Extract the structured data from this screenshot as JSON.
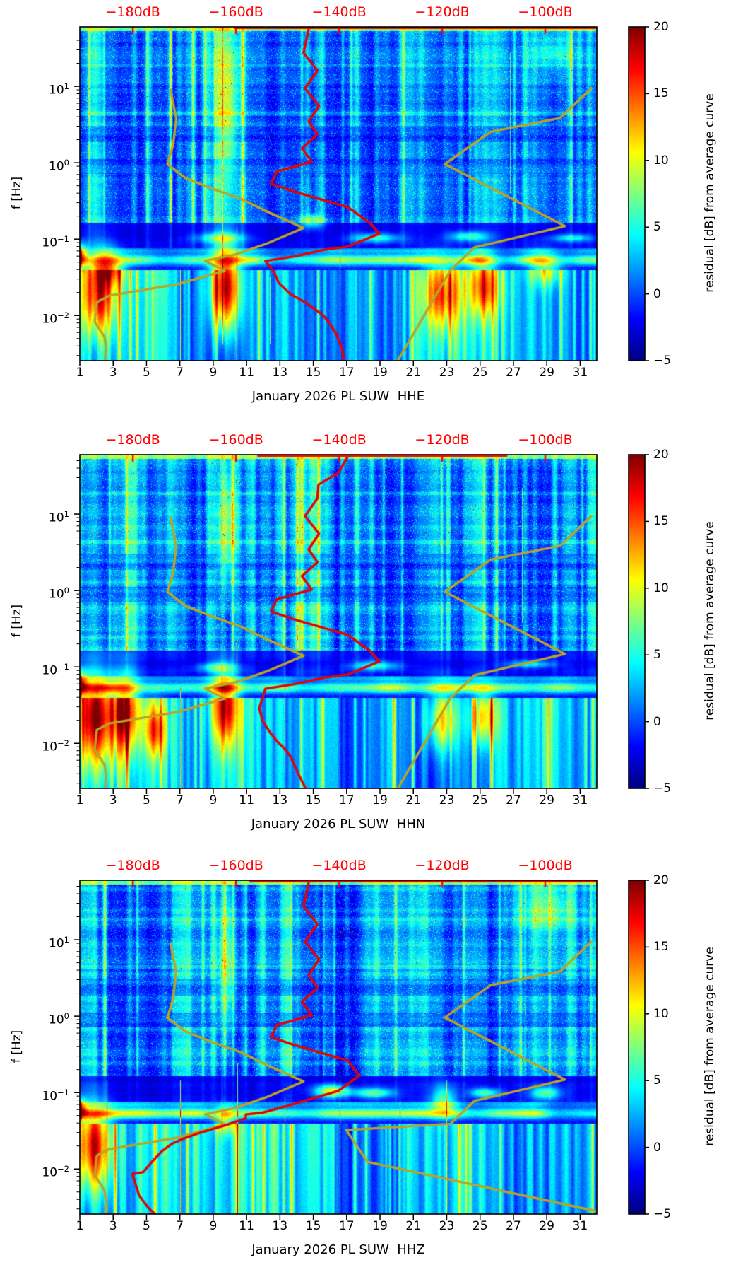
{
  "chart_data": {
    "type": "heatmap",
    "description_visible": "Three stacked day-frequency residual spectrograms with overlaid PSD curve (red) and noise-model curves (olive), each with a jet colorbar",
    "figures": [
      {
        "component": "HHE",
        "title": "January 2026 PL SUW  HHE",
        "seed": 20260101,
        "red_top_clip": [
          0.3,
          1.0
        ],
        "red_psd_dB_Hz": [
          [
            -145.8,
            60
          ],
          [
            -146.9,
            27.4
          ],
          [
            -144.2,
            16.1
          ],
          [
            -146.6,
            9.45
          ],
          [
            -143.9,
            5.55
          ],
          [
            -145.9,
            3.45
          ],
          [
            -144.2,
            2.35
          ],
          [
            -147.2,
            1.54
          ],
          [
            -145.3,
            1.03
          ],
          [
            -152.1,
            0.765
          ],
          [
            -153.2,
            0.531
          ],
          [
            -148.3,
            0.41
          ],
          [
            -138.3,
            0.263
          ],
          [
            -133.9,
            0.16
          ],
          [
            -132.2,
            0.118
          ],
          [
            -138.2,
            0.08
          ],
          [
            -142.8,
            0.0727
          ],
          [
            -148.3,
            0.06
          ],
          [
            -154.3,
            0.0518
          ],
          [
            -152.6,
            0.0369
          ],
          [
            -151.7,
            0.0266
          ],
          [
            -149.4,
            0.019
          ],
          [
            -146.5,
            0.0148
          ],
          [
            -143.1,
            0.0101
          ],
          [
            -141.8,
            0.0078
          ],
          [
            -140.7,
            0.006
          ],
          [
            -139.7,
            0.0042
          ],
          [
            -139.0,
            0.00257
          ]
        ],
        "hotspots": [
          {
            "d": 2.1,
            "f": 0.019,
            "rx": 0.035,
            "ry": 0.12,
            "a": 14
          },
          {
            "d": 2.7,
            "f": 0.043,
            "rx": 0.03,
            "ry": 0.05,
            "a": 10
          },
          {
            "d": 9.7,
            "f": 0.0235,
            "rx": 0.028,
            "ry": 0.13,
            "a": 19
          },
          {
            "d": 22.7,
            "f": 0.019,
            "rx": 0.035,
            "ry": 0.1,
            "a": 11
          },
          {
            "d": 25.2,
            "f": 0.0235,
            "rx": 0.028,
            "ry": 0.09,
            "a": 11
          },
          {
            "d": 28.9,
            "f": 0.042,
            "rx": 0.03,
            "ry": 0.05,
            "a": 8
          },
          {
            "d": 9.8,
            "f": 6,
            "rx": 0.02,
            "ry": 0.26,
            "a": 8
          },
          {
            "d": 1.05,
            "f": 0.06,
            "rx": 0.012,
            "ry": 0.035,
            "a": 12
          },
          {
            "d": 14.9,
            "f": 0.172,
            "rx": 0.025,
            "ry": 0.022,
            "a": 7
          },
          {
            "d": 18.7,
            "f": 0.105,
            "rx": 0.05,
            "ry": 0.015,
            "a": 8
          },
          {
            "d": 24.3,
            "f": 0.11,
            "rx": 0.04,
            "ry": 0.015,
            "a": 8
          },
          {
            "d": 9.4,
            "f": 0.105,
            "rx": 0.05,
            "ry": 0.015,
            "a": 7
          },
          {
            "d": 30.5,
            "f": 0.105,
            "rx": 0.04,
            "ry": 0.012,
            "a": 7
          },
          {
            "d": 29.5,
            "f": 30,
            "rx": 0.04,
            "ry": 0.06,
            "a": 4
          }
        ],
        "lines": [
          [
            7.0,
            0.73,
            1,
            9
          ],
          [
            10.4,
            0.6,
            1,
            10
          ],
          [
            16.6,
            0.66,
            1,
            8
          ],
          [
            20.2,
            0.73,
            0.95,
            8
          ],
          [
            12.4,
            0.75,
            0.95,
            7
          ],
          [
            4.9,
            0.1,
            0.55,
            6
          ],
          [
            26.8,
            0.08,
            0.5,
            6
          ],
          [
            9.55,
            0.0,
            0.95,
            6
          ]
        ],
        "low_boost": [
          {
            "x0": 0,
            "x1": 0.06,
            "a": 1.5
          }
        ]
      },
      {
        "component": "HHN",
        "title": "January 2026 PL SUW  HHN",
        "seed": 20260247,
        "red_top_clip": [
          0.345,
          0.825
        ],
        "red_psd_dB_Hz": [
          [
            -138.1,
            60
          ],
          [
            -140.2,
            34.4
          ],
          [
            -144.0,
            24.3
          ],
          [
            -144.2,
            16.1
          ],
          [
            -146.6,
            9.45
          ],
          [
            -143.9,
            5.55
          ],
          [
            -145.9,
            3.45
          ],
          [
            -144.2,
            2.35
          ],
          [
            -147.2,
            1.54
          ],
          [
            -145.3,
            1.03
          ],
          [
            -152.1,
            0.765
          ],
          [
            -153.2,
            0.531
          ],
          [
            -148.3,
            0.41
          ],
          [
            -138.3,
            0.263
          ],
          [
            -133.9,
            0.16
          ],
          [
            -132.2,
            0.118
          ],
          [
            -138.2,
            0.08
          ],
          [
            -142.8,
            0.0727
          ],
          [
            -148.3,
            0.06
          ],
          [
            -154.3,
            0.0518
          ],
          [
            -155.5,
            0.0287
          ],
          [
            -154.8,
            0.0194
          ],
          [
            -153.3,
            0.0136
          ],
          [
            -151.9,
            0.0104
          ],
          [
            -150.7,
            0.0087
          ],
          [
            -149.4,
            0.0067
          ],
          [
            -148.0,
            0.0041
          ],
          [
            -146.5,
            0.00257
          ]
        ],
        "hotspots": [
          {
            "d": 1.9,
            "f": 0.022,
            "rx": 0.04,
            "ry": 0.14,
            "a": 16
          },
          {
            "d": 3.8,
            "f": 0.025,
            "rx": 0.025,
            "ry": 0.12,
            "a": 13
          },
          {
            "d": 5.5,
            "f": 0.015,
            "rx": 0.02,
            "ry": 0.08,
            "a": 11
          },
          {
            "d": 9.7,
            "f": 0.03,
            "rx": 0.025,
            "ry": 0.12,
            "a": 14
          },
          {
            "d": 22.7,
            "f": 0.02,
            "rx": 0.03,
            "ry": 0.09,
            "a": 10
          },
          {
            "d": 25.2,
            "f": 0.022,
            "rx": 0.025,
            "ry": 0.08,
            "a": 10
          },
          {
            "d": 9.8,
            "f": 8,
            "rx": 0.02,
            "ry": 0.22,
            "a": 9
          },
          {
            "d": 1.05,
            "f": 0.06,
            "rx": 0.012,
            "ry": 0.035,
            "a": 10
          },
          {
            "d": 18.7,
            "f": 0.105,
            "rx": 0.05,
            "ry": 0.015,
            "a": 8
          },
          {
            "d": 28.0,
            "f": 0.11,
            "rx": 0.05,
            "ry": 0.012,
            "a": 7
          },
          {
            "d": 9.2,
            "f": 0.1,
            "rx": 0.04,
            "ry": 0.015,
            "a": 7
          }
        ],
        "lines": [
          [
            7.0,
            0.7,
            1,
            9
          ],
          [
            10.4,
            0.55,
            1,
            9
          ],
          [
            13.3,
            0.6,
            0.95,
            8
          ],
          [
            16.6,
            0.7,
            1,
            8
          ],
          [
            20.2,
            0.7,
            1,
            8
          ],
          [
            9.5,
            0,
            0.9,
            6
          ],
          [
            27.5,
            0.1,
            0.5,
            6
          ]
        ],
        "low_boost": [
          {
            "x0": 0,
            "x1": 0.35,
            "a": 2.2
          }
        ]
      },
      {
        "component": "HHZ",
        "title": "January 2026 PL SUW  HHZ",
        "seed": 20260383,
        "nhnm_variant": true,
        "red_top_clip": [
          0.33,
          1.0
        ],
        "red_psd_dB_Hz": [
          [
            -145.8,
            60
          ],
          [
            -146.9,
            27.4
          ],
          [
            -144.2,
            16.1
          ],
          [
            -146.6,
            9.45
          ],
          [
            -143.9,
            5.55
          ],
          [
            -145.9,
            3.45
          ],
          [
            -144.2,
            2.35
          ],
          [
            -147.2,
            1.54
          ],
          [
            -145.3,
            1.03
          ],
          [
            -152.1,
            0.765
          ],
          [
            -153.2,
            0.531
          ],
          [
            -148.3,
            0.41
          ],
          [
            -138.3,
            0.263
          ],
          [
            -136.1,
            0.166
          ],
          [
            -140.2,
            0.105
          ],
          [
            -150.0,
            0.067
          ],
          [
            -154.7,
            0.055
          ],
          [
            -158.1,
            0.0517
          ],
          [
            -158.1,
            0.046
          ],
          [
            -162.3,
            0.0369
          ],
          [
            -167.0,
            0.0298
          ],
          [
            -170.1,
            0.0251
          ],
          [
            -172.4,
            0.0215
          ],
          [
            -174.3,
            0.0173
          ],
          [
            -176.0,
            0.0131
          ],
          [
            -178.0,
            0.0091
          ],
          [
            -180.1,
            0.0086
          ],
          [
            -178.8,
            0.0045
          ],
          [
            -177.0,
            0.0031
          ],
          [
            -175.7,
            0.00257
          ]
        ],
        "hotspots": [
          {
            "d": 1.8,
            "f": 0.02,
            "rx": 0.035,
            "ry": 0.13,
            "a": 15
          },
          {
            "d": 9.7,
            "f": 0.045,
            "rx": 0.02,
            "ry": 0.04,
            "a": 9
          },
          {
            "d": 16.1,
            "f": 0.105,
            "rx": 0.035,
            "ry": 0.02,
            "a": 13
          },
          {
            "d": 18.6,
            "f": 0.1,
            "rx": 0.04,
            "ry": 0.015,
            "a": 9
          },
          {
            "d": 22.8,
            "f": 0.08,
            "rx": 0.025,
            "ry": 0.05,
            "a": 9
          },
          {
            "d": 25.3,
            "f": 0.1,
            "rx": 0.03,
            "ry": 0.015,
            "a": 9
          },
          {
            "d": 28.9,
            "f": 0.1,
            "rx": 0.03,
            "ry": 0.02,
            "a": 9
          },
          {
            "d": 9.8,
            "f": 6,
            "rx": 0.02,
            "ry": 0.26,
            "a": 8
          },
          {
            "d": 1.05,
            "f": 0.06,
            "rx": 0.012,
            "ry": 0.03,
            "a": 10
          },
          {
            "d": 29.0,
            "f": 25,
            "rx": 0.05,
            "ry": 0.08,
            "a": 5
          }
        ],
        "lines": [
          [
            7.0,
            0.6,
            1,
            10
          ],
          [
            10.45,
            0.55,
            1,
            9
          ],
          [
            2.6,
            0.6,
            1,
            8
          ],
          [
            13.3,
            0.65,
            1,
            8
          ],
          [
            16.6,
            0.6,
            1,
            8
          ],
          [
            20.2,
            0.65,
            1,
            8
          ],
          [
            23.0,
            0.6,
            1,
            7
          ],
          [
            9.5,
            0,
            0.9,
            6
          ]
        ],
        "low_boost": [
          {
            "x0": 0,
            "x1": 0.12,
            "a": 1.8
          }
        ]
      }
    ],
    "axes": {
      "x": {
        "tick_labels": [
          "1",
          "3",
          "5",
          "7",
          "9",
          "11",
          "13",
          "15",
          "17",
          "19",
          "21",
          "23",
          "25",
          "27",
          "29",
          "31"
        ],
        "tick_days": [
          1,
          3,
          5,
          7,
          9,
          11,
          13,
          15,
          17,
          19,
          21,
          23,
          25,
          27,
          29,
          31
        ],
        "day_range": [
          1,
          32
        ]
      },
      "y": {
        "label": "f [Hz]",
        "major_tick_exponents": [
          1,
          0,
          -1,
          -2
        ],
        "freq_range_hz": [
          0.00257,
          60
        ],
        "scale": "log"
      },
      "top": {
        "labels": [
          "−180dB",
          "−160dB",
          "−140dB",
          "−120dB",
          "−100dB"
        ],
        "values_dB": [
          -180,
          -160,
          -140,
          -120,
          -100
        ],
        "axis_range_dB": [
          -190.3,
          -90.0
        ],
        "color": "#ff0000"
      }
    },
    "colorbar": {
      "label": "residual [dB] from average curve",
      "tick_labels": [
        "20",
        "15",
        "10",
        "5",
        "0",
        "−5"
      ],
      "tick_values": [
        20,
        15,
        10,
        5,
        0,
        -5
      ],
      "value_range": [
        -5,
        20
      ],
      "colormap": "jet"
    },
    "noise_models": {
      "color": "#b9a426",
      "nlnm_dB_Hz": [
        [
          -172.7,
          9.0
        ],
        [
          -171.6,
          3.8
        ],
        [
          -172.2,
          1.7
        ],
        [
          -173.3,
          0.96
        ],
        [
          -169.8,
          0.63
        ],
        [
          -164.7,
          0.46
        ],
        [
          -159.2,
          0.34
        ],
        [
          -153.7,
          0.225
        ],
        [
          -146.9,
          0.14
        ],
        [
          -154.1,
          0.087
        ],
        [
          -160.1,
          0.063
        ],
        [
          -166.0,
          0.052
        ],
        [
          -162.2,
          0.0384
        ],
        [
          -171.5,
          0.0256
        ],
        [
          -184.6,
          0.0182
        ],
        [
          -187.0,
          0.015
        ],
        [
          -187.4,
          0.0083
        ],
        [
          -185.5,
          0.0052
        ],
        [
          -185.2,
          0.0037
        ],
        [
          -185.4,
          0.00257
        ]
      ],
      "nhnm_dB_Hz": [
        [
          -91.1,
          9.4
        ],
        [
          -97.1,
          3.85
        ],
        [
          -110.6,
          2.54
        ],
        [
          -119.5,
          0.96
        ],
        [
          -96.2,
          0.148
        ],
        [
          -113.7,
          0.078
        ],
        [
          -118.4,
          0.039
        ],
        [
          -128.6,
          0.00257
        ]
      ],
      "nhnm_hhz_tail_dB_Hz": [
        [
          -138.6,
          0.0324
        ],
        [
          -134.5,
          0.0124
        ],
        [
          -90.0,
          0.0028
        ]
      ]
    },
    "psd_curve_color": "#e80000",
    "grid": false,
    "background": "#ffffff"
  }
}
